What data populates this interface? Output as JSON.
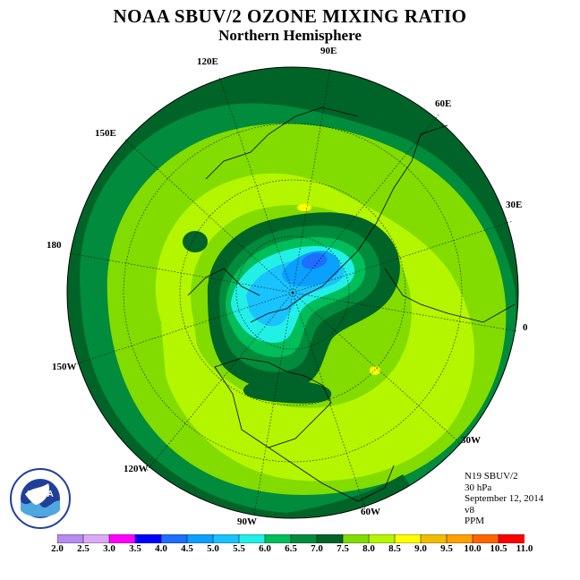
{
  "header": {
    "title": "NOAA SBUV/2 OZONE MIXING RATIO",
    "subtitle": "Northern Hemisphere"
  },
  "longitude_labels": [
    {
      "label": "90E"
    },
    {
      "label": "120E"
    },
    {
      "label": "60E"
    },
    {
      "label": "150E"
    },
    {
      "label": "30E"
    },
    {
      "label": "180"
    },
    {
      "label": "0"
    },
    {
      "label": "150W"
    },
    {
      "label": "30W"
    },
    {
      "label": "120W"
    },
    {
      "label": "60W"
    },
    {
      "label": "90W"
    }
  ],
  "info": {
    "satellite": "N19 SBUV/2",
    "level": "30 hPa",
    "date": "September 12, 2014",
    "version": "v8",
    "units": "PPM"
  },
  "colorbar": {
    "ticks": [
      "2.0",
      "2.5",
      "3.0",
      "3.5",
      "4.0",
      "4.5",
      "5.0",
      "5.5",
      "6.0",
      "6.5",
      "7.0",
      "7.5",
      "8.0",
      "8.5",
      "9.0",
      "9.5",
      "10.0",
      "10.5",
      "11.0"
    ],
    "colors": [
      "#b68cf0",
      "#dcaaf5",
      "#ff00ff",
      "#0000ff",
      "#1e6eff",
      "#0aa0ff",
      "#19c3ff",
      "#22f0e6",
      "#00be5a",
      "#008c3c",
      "#006428",
      "#82dc00",
      "#b4f500",
      "#ffff00",
      "#f0be00",
      "#ffa000",
      "#ff6400",
      "#ff0000",
      "#96643c"
    ]
  },
  "logo": {
    "text": "NOAA"
  }
}
